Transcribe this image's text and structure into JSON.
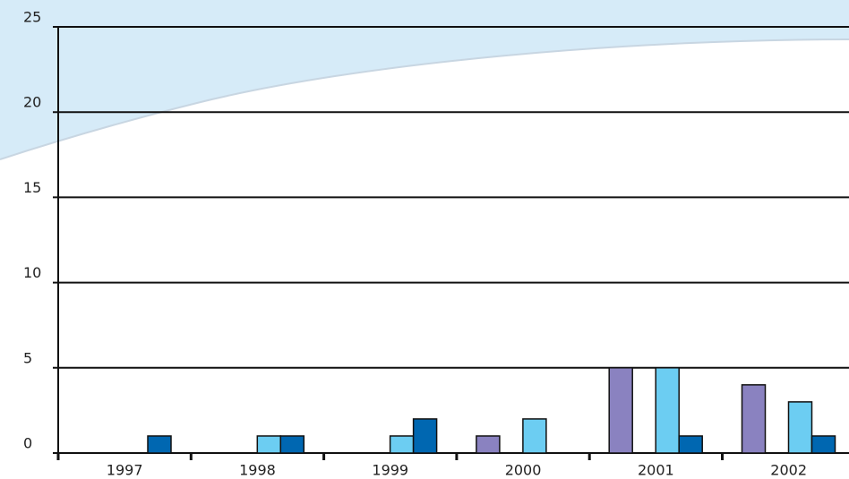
{
  "chart_data": {
    "type": "bar",
    "categories": [
      "1997",
      "1998",
      "1999",
      "2000",
      "2001",
      "2002"
    ],
    "series": [
      {
        "color": "#8a82c0",
        "values": [
          0,
          0,
          0,
          1,
          5,
          4
        ]
      },
      {
        "color": "#6ccdf2",
        "values": [
          0,
          1,
          1,
          2,
          5,
          3
        ]
      },
      {
        "color": "#0067b1",
        "values": [
          1,
          1,
          2,
          0,
          1,
          1
        ]
      }
    ],
    "ylim": [
      0,
      25
    ],
    "yticks": [
      0,
      5,
      10,
      15,
      20,
      25
    ],
    "grid": true
  }
}
